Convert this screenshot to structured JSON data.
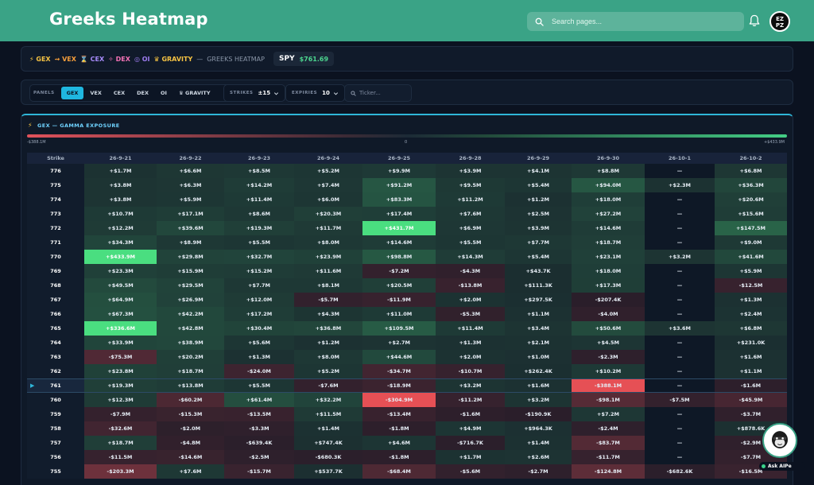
{
  "header": {
    "title": "Greeks Heatmap",
    "search_placeholder": "Search pages...",
    "avatar_text": "EZ PZ"
  },
  "nav": {
    "items": [
      {
        "label": "⚡ GEX",
        "color": "#f6c343"
      },
      {
        "label": "⇝ VEX",
        "color": "#f59e3b"
      },
      {
        "label": "⌛ CEX",
        "color": "#a78bfa"
      },
      {
        "label": "✧ DEX",
        "color": "#f472b6"
      },
      {
        "label": "◎ OI",
        "color": "#9d7cf0"
      },
      {
        "label": "♛ GRAVITY",
        "color": "#f6c343"
      }
    ],
    "separator": "—",
    "subtitle": "GREEKS HEATMAP",
    "ticker": "SPY",
    "price": "$761.69"
  },
  "controls": {
    "panels_label": "PANELS",
    "panels": [
      "GEX",
      "VEX",
      "CEX",
      "DEX",
      "OI",
      "♛ GRAVITY"
    ],
    "active_panel": "GEX",
    "strikes_label": "STRIKES",
    "strikes_value": "±15",
    "expiries_label": "EXPIRIES",
    "expiries_value": "10",
    "ticker_placeholder": "Ticker..."
  },
  "panel": {
    "title": "GEX — GAMMA EXPOSURE",
    "scale_min": "-$388.1M",
    "scale_mid": "0",
    "scale_max": "+$433.9M"
  },
  "chart_data": {
    "type": "heatmap",
    "title": "GEX — GAMMA EXPOSURE",
    "row_header": "Strike",
    "current_strike": "761",
    "columns": [
      "26-9-21",
      "26-9-22",
      "26-9-23",
      "26-9-24",
      "26-9-25",
      "26-9-28",
      "26-9-29",
      "26-9-30",
      "26-10-1",
      "26-10-2"
    ],
    "rows": [
      {
        "strike": "776",
        "cells": [
          "+$1.7M",
          "+$6.6M",
          "+$8.5M",
          "+$5.2M",
          "+$9.9M",
          "+$3.9M",
          "+$4.1M",
          "+$8.8M",
          "—",
          "+$6.8M"
        ]
      },
      {
        "strike": "775",
        "cells": [
          "+$3.8M",
          "+$6.3M",
          "+$14.2M",
          "+$7.4M",
          "+$91.2M",
          "+$9.5M",
          "+$5.4M",
          "+$94.0M",
          "+$2.3M",
          "+$36.3M"
        ]
      },
      {
        "strike": "774",
        "cells": [
          "+$3.8M",
          "+$5.9M",
          "+$11.4M",
          "+$6.0M",
          "+$83.3M",
          "+$11.2M",
          "+$1.2M",
          "+$18.0M",
          "—",
          "+$20.6M"
        ]
      },
      {
        "strike": "773",
        "cells": [
          "+$10.7M",
          "+$17.1M",
          "+$8.6M",
          "+$20.3M",
          "+$17.4M",
          "+$7.6M",
          "+$2.5M",
          "+$27.2M",
          "—",
          "+$15.6M"
        ]
      },
      {
        "strike": "772",
        "cells": [
          "+$12.2M",
          "+$39.6M",
          "+$19.3M",
          "+$11.7M",
          "+$431.7M",
          "+$6.9M",
          "+$3.9M",
          "+$14.6M",
          "—",
          "+$147.5M"
        ]
      },
      {
        "strike": "771",
        "cells": [
          "+$34.3M",
          "+$8.9M",
          "+$5.5M",
          "+$8.0M",
          "+$14.6M",
          "+$5.5M",
          "+$7.7M",
          "+$18.7M",
          "—",
          "+$9.0M"
        ]
      },
      {
        "strike": "770",
        "cells": [
          "+$433.9M",
          "+$29.8M",
          "+$32.7M",
          "+$23.9M",
          "+$98.8M",
          "+$14.3M",
          "+$5.4M",
          "+$23.1M",
          "+$3.2M",
          "+$41.6M"
        ]
      },
      {
        "strike": "769",
        "cells": [
          "+$23.3M",
          "+$15.9M",
          "+$15.2M",
          "+$11.6M",
          "-$7.2M",
          "-$4.3M",
          "+$43.7K",
          "+$18.0M",
          "—",
          "+$5.9M"
        ]
      },
      {
        "strike": "768",
        "cells": [
          "+$49.5M",
          "+$29.5M",
          "+$7.7M",
          "+$8.1M",
          "+$20.5M",
          "-$13.8M",
          "+$111.3K",
          "+$17.3M",
          "—",
          "-$12.5M"
        ]
      },
      {
        "strike": "767",
        "cells": [
          "+$64.9M",
          "+$26.9M",
          "+$12.0M",
          "-$5.7M",
          "-$11.9M",
          "+$2.0M",
          "+$297.5K",
          "-$207.4K",
          "—",
          "+$1.3M"
        ]
      },
      {
        "strike": "766",
        "cells": [
          "+$67.3M",
          "+$42.2M",
          "+$17.2M",
          "+$4.3M",
          "+$11.0M",
          "-$5.3M",
          "+$1.1M",
          "-$4.0M",
          "—",
          "+$2.4M"
        ]
      },
      {
        "strike": "765",
        "cells": [
          "+$336.6M",
          "+$42.8M",
          "+$30.4M",
          "+$36.8M",
          "+$109.5M",
          "+$11.4M",
          "+$3.4M",
          "+$50.6M",
          "+$3.6M",
          "+$6.8M"
        ]
      },
      {
        "strike": "764",
        "cells": [
          "+$33.9M",
          "+$38.9M",
          "+$5.6M",
          "+$1.2M",
          "+$2.7M",
          "+$1.3M",
          "+$2.1M",
          "+$4.5M",
          "—",
          "+$231.0K"
        ]
      },
      {
        "strike": "763",
        "cells": [
          "-$75.3M",
          "+$20.2M",
          "+$1.3M",
          "+$8.0M",
          "+$44.6M",
          "+$2.0M",
          "+$1.0M",
          "-$2.3M",
          "—",
          "+$1.6M"
        ]
      },
      {
        "strike": "762",
        "cells": [
          "+$23.8M",
          "+$18.7M",
          "-$24.0M",
          "+$5.2M",
          "-$34.7M",
          "-$10.7M",
          "+$262.4K",
          "+$10.2M",
          "—",
          "+$1.1M"
        ]
      },
      {
        "strike": "761",
        "cells": [
          "+$19.3M",
          "+$13.8M",
          "+$5.5M",
          "-$7.6M",
          "-$18.9M",
          "+$3.2M",
          "+$1.6M",
          "-$388.1M",
          "—",
          "-$1.6M"
        ]
      },
      {
        "strike": "760",
        "cells": [
          "+$12.3M",
          "-$60.2M",
          "+$61.4M",
          "+$32.2M",
          "-$304.9M",
          "-$11.2M",
          "+$3.2M",
          "-$98.1M",
          "-$7.5M",
          "-$45.9M"
        ]
      },
      {
        "strike": "759",
        "cells": [
          "-$7.9M",
          "-$15.3M",
          "-$13.5M",
          "+$11.5M",
          "-$13.4M",
          "-$1.6M",
          "-$190.9K",
          "+$7.2M",
          "—",
          "-$3.7M"
        ]
      },
      {
        "strike": "758",
        "cells": [
          "-$32.6M",
          "-$2.0M",
          "-$3.3M",
          "+$1.4M",
          "-$1.8M",
          "+$4.9M",
          "+$964.3K",
          "-$2.4M",
          "—",
          "+$878.6K"
        ]
      },
      {
        "strike": "757",
        "cells": [
          "+$18.7M",
          "-$4.8M",
          "-$639.4K",
          "+$747.4K",
          "+$4.6M",
          "-$716.7K",
          "+$1.4M",
          "-$83.7M",
          "—",
          "-$2.9M"
        ]
      },
      {
        "strike": "756",
        "cells": [
          "-$11.5M",
          "-$14.6M",
          "-$2.5M",
          "-$680.3K",
          "-$1.8M",
          "+$1.7M",
          "+$2.6M",
          "-$11.7M",
          "—",
          "-$7.7M"
        ]
      },
      {
        "strike": "755",
        "cells": [
          "-$203.3M",
          "+$7.6M",
          "-$15.7M",
          "+$537.7K",
          "-$68.4M",
          "-$5.6M",
          "-$2.7M",
          "-$124.8M",
          "-$682.6K",
          "-$16.5M"
        ]
      }
    ]
  },
  "assistant": {
    "label": "Ask AIPe"
  },
  "colors": {
    "header_bg": "#3aa386",
    "active_tab": "#1fb7e0",
    "positive": "#44cf86",
    "negative": "#e0525b"
  }
}
